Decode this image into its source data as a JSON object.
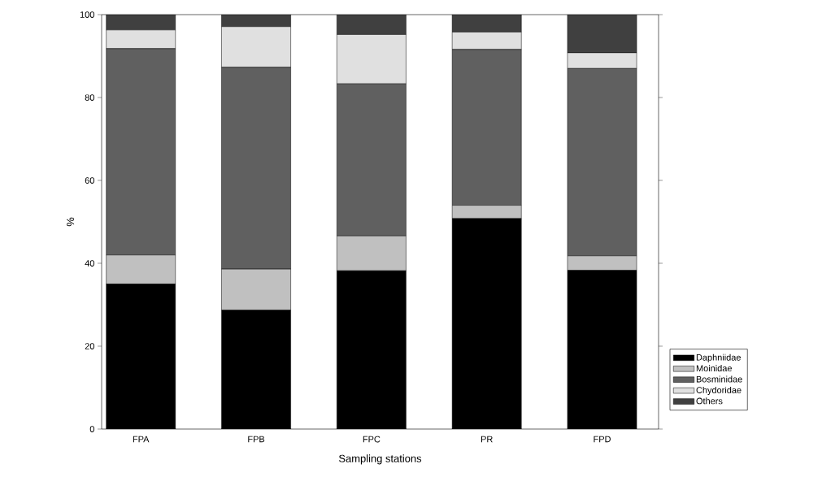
{
  "chart_data": {
    "type": "bar",
    "stacked": true,
    "xlabel": "Sampling stations",
    "ylabel": "%",
    "categories": [
      "FPA",
      "FPB",
      "FPC",
      "PR",
      "FPD"
    ],
    "series": [
      {
        "name": "Daphniidae",
        "color": "#000000",
        "values": [
          35,
          28.7,
          38.2,
          50.8,
          38.3
        ]
      },
      {
        "name": "Moinidae",
        "color": "#c0c0c0",
        "values": [
          7,
          9.9,
          8.4,
          3.2,
          3.5
        ]
      },
      {
        "name": "Bosminidae",
        "color": "#606060",
        "values": [
          49.8,
          48.7,
          36.7,
          37.6,
          45.2
        ]
      },
      {
        "name": "Chydoridae",
        "color": "#e0e0e0",
        "values": [
          4.5,
          9.8,
          11.9,
          4.2,
          3.8
        ]
      },
      {
        "name": "Others",
        "color": "#404040",
        "values": [
          3.7,
          2.9,
          4.8,
          4.2,
          9.2
        ]
      }
    ],
    "ylim": [
      0,
      100
    ],
    "yticks": [
      0,
      20,
      40,
      60,
      80,
      100
    ],
    "legend": "bottom right"
  }
}
